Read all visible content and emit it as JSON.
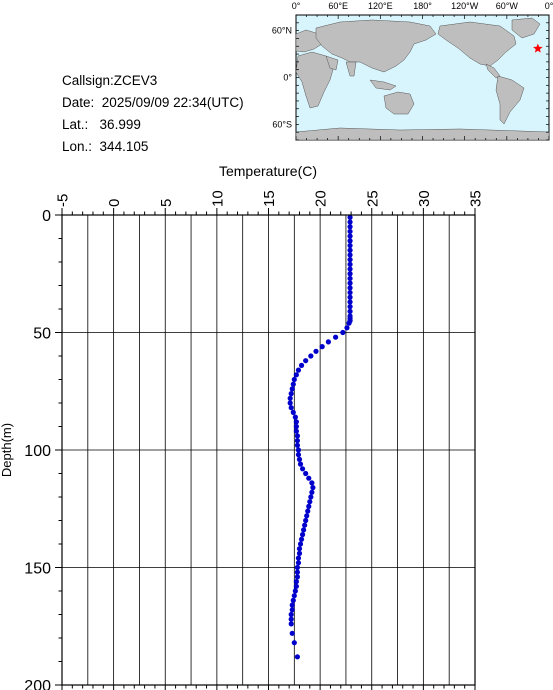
{
  "info": {
    "callsign_label": "Callsign:",
    "callsign": "ZCEV3",
    "date_label": "Date:",
    "date": "2025/09/09 22:34(UTC)",
    "lat_label": "Lat.:",
    "lat": "36.999",
    "lon_label": "Lon.:",
    "lon": "344.105"
  },
  "map": {
    "top_labels": [
      "0°",
      "60°E",
      "120°E",
      "180°",
      "120°W",
      "60°W",
      "0°"
    ],
    "lat_labels": [
      "60°N",
      "0°",
      "60°S"
    ],
    "ocean_color": "#d8f4fc",
    "land_color": "#bebebe",
    "marker_color": "#ff0000",
    "marker_lon": 344.105,
    "marker_lat": 36.999
  },
  "chart_data": {
    "type": "scatter",
    "xlabel": "Temperature(C)",
    "ylabel": "Depth(m)",
    "xlim": [
      -5,
      35
    ],
    "ylim": [
      200,
      0
    ],
    "x_ticks": [
      "-5",
      "0",
      "5",
      "10",
      "15",
      "20",
      "25",
      "30",
      "35"
    ],
    "y_ticks": [
      "0",
      "50",
      "100",
      "150",
      "200"
    ],
    "grid": true,
    "marker_color": "#0000cc",
    "x": [
      22.9,
      22.9,
      22.9,
      22.9,
      22.9,
      22.9,
      22.9,
      22.9,
      22.9,
      22.9,
      22.9,
      22.9,
      22.9,
      22.9,
      22.9,
      22.9,
      22.9,
      22.9,
      22.9,
      22.9,
      22.9,
      22.9,
      22.9,
      22.9,
      22.8,
      22.6,
      22.2,
      21.5,
      20.8,
      20.2,
      19.6,
      19.1,
      18.6,
      18.2,
      17.9,
      17.7,
      17.5,
      17.4,
      17.3,
      17.2,
      17.1,
      17.1,
      17.2,
      17.4,
      17.6,
      17.7,
      17.7,
      17.7,
      17.8,
      17.8,
      17.8,
      17.9,
      17.9,
      18.0,
      18.1,
      18.3,
      18.6,
      18.9,
      19.2,
      19.3,
      19.2,
      19.1,
      19.0,
      18.9,
      18.8,
      18.7,
      18.6,
      18.5,
      18.4,
      18.3,
      18.2,
      18.1,
      18.0,
      18.0,
      17.9,
      17.9,
      17.8,
      17.8,
      17.8,
      17.7,
      17.7,
      17.6,
      17.5,
      17.4,
      17.3,
      17.3,
      17.2,
      17.2,
      17.2,
      17.3,
      17.5,
      17.8
    ],
    "y": [
      1,
      3,
      5,
      7,
      9,
      11,
      13,
      15,
      17,
      19,
      21,
      23,
      25,
      27,
      29,
      31,
      33,
      35,
      37,
      39,
      41,
      43,
      44,
      45,
      46,
      48,
      50,
      52,
      54,
      56,
      58,
      60,
      62,
      64,
      66,
      68,
      70,
      72,
      74,
      76,
      78,
      80,
      82,
      84,
      86,
      88,
      90,
      92,
      94,
      96,
      98,
      100,
      102,
      104,
      106,
      108,
      110,
      112,
      114,
      116,
      118,
      120,
      122,
      124,
      126,
      128,
      130,
      132,
      134,
      136,
      138,
      140,
      142,
      144,
      146,
      148,
      150,
      152,
      154,
      156,
      158,
      160,
      162,
      164,
      166,
      168,
      170,
      172,
      174,
      178,
      182,
      188
    ]
  }
}
